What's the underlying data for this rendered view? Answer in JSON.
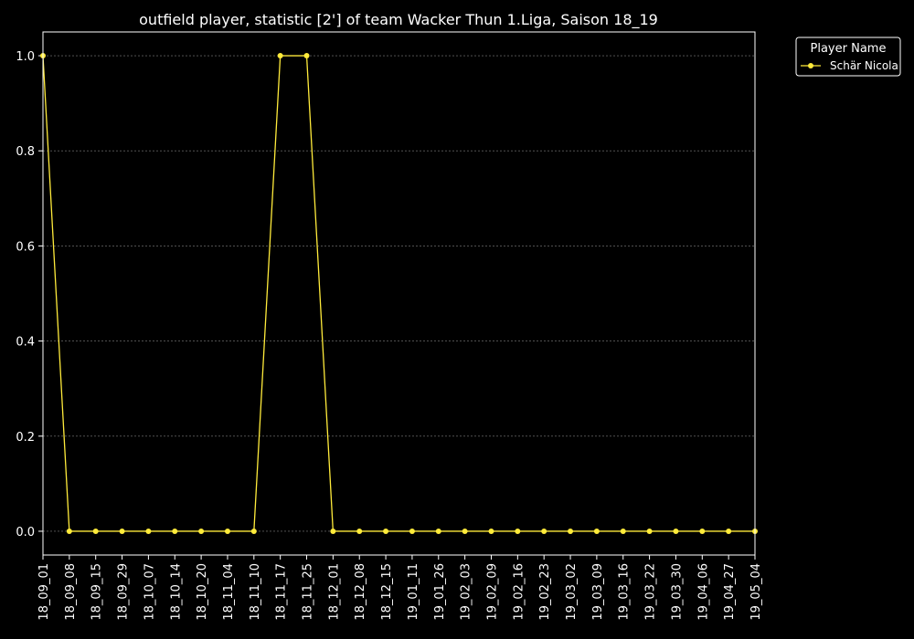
{
  "chart_data": {
    "type": "line",
    "title": "outfield player, statistic [2'] of team Wacker Thun 1.Liga, Saison 18_19",
    "xlabel": "",
    "ylabel": "",
    "x": [
      "18_09_01",
      "18_09_08",
      "18_09_15",
      "18_09_29",
      "18_10_07",
      "18_10_14",
      "18_10_20",
      "18_11_04",
      "18_11_10",
      "18_11_17",
      "18_11_25",
      "18_12_01",
      "18_12_08",
      "18_12_15",
      "19_01_11",
      "19_01_26",
      "19_02_03",
      "19_02_09",
      "19_02_16",
      "19_02_23",
      "19_03_02",
      "19_03_09",
      "19_03_16",
      "19_03_22",
      "19_03_30",
      "19_04_06",
      "19_04_27",
      "19_05_04"
    ],
    "series": [
      {
        "name": "Schär Nicola",
        "color": "#ffeb3b",
        "values": [
          1,
          0,
          0,
          0,
          0,
          0,
          0,
          0,
          0,
          1,
          1,
          0,
          0,
          0,
          0,
          0,
          0,
          0,
          0,
          0,
          0,
          0,
          0,
          0,
          0,
          0,
          0,
          0
        ]
      }
    ],
    "ylim": [
      -0.05,
      1.05
    ],
    "yticks": [
      0.0,
      0.2,
      0.4,
      0.6,
      0.8,
      1.0
    ],
    "grid": true,
    "legend": {
      "title": "Player Name",
      "placement": "outside-top-right"
    },
    "colors": {
      "background": "#000000",
      "foreground": "#ffffff",
      "grid": "#808080"
    }
  }
}
